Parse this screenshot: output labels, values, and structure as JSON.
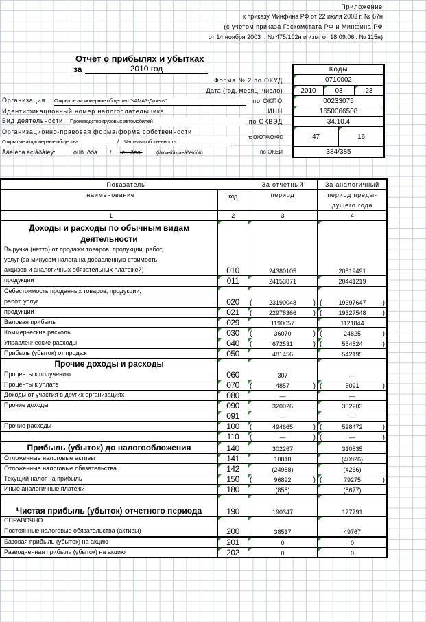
{
  "appendix": {
    "line1": "Приложение",
    "line2": "к приказу Минфина РФ от 22 июля 2003 г. № 67н",
    "line3": "(с учетом приказа Госкомстата РФ и Минфина РФ",
    "line4": "от 14 ноября 2003 г. № 475/102н и изм. от 18.09.06г. № 115н)"
  },
  "title": "Отчет о прибылях и убытках",
  "period_prefix": "за",
  "period": "2010 год",
  "codes": {
    "header": "Коды",
    "okud_label": "Форма № 2 по ОКУД",
    "okud": "0710002",
    "date_label": "Дата (год, месяц, число)",
    "year": "2010",
    "month": "03",
    "day": "23",
    "okpo_label": "по ОКПО",
    "okpo": "00233075",
    "inn_label": "ИНН",
    "inn": "1650066508",
    "okved_label": "по ОКВЭД",
    "okved": "34.10.4",
    "okopf_label": "по ОКОПФ/ОКФС",
    "okopf": "47",
    "okfs": "16",
    "okei_label": "по ОКЕИ",
    "okei": "384/385"
  },
  "org": {
    "org_label": "Организация",
    "org_value": "Открытое акционерное общество \"КАМАЗ-Дизель\"",
    "inn_label": "Идентификационный номер налогоплательщика",
    "activity_label": "Вид деятельности",
    "activity_value": "Производство грузовых автомобилей",
    "form_label": "Организационно-правовая форма/форма собственности",
    "form_value": "Открытые акционерные общества",
    "slash": "/",
    "ownership_value": "Частная собственность",
    "unit_label": "Åäèíèöà èçìåðåíèÿ:",
    "unit_a": "òûñ. ðóá.",
    "unit_slash": "/",
    "unit_b": "ìëí. ðóá.",
    "unit_note": "(íåíóæíîå çà÷åðêíóòü)"
  },
  "table": {
    "h_indicator": "Показатель",
    "h_name": "наименование",
    "h_code": "код",
    "h_cur_1": "За отчетный",
    "h_cur_2": "период",
    "h_prev_1": "За аналогичный",
    "h_prev_2": "период преды-",
    "h_prev_3": "дущего года",
    "n1": "1",
    "n2": "2",
    "n3": "3",
    "n4": "4",
    "rows": [
      {
        "heading": "Доходы и расходы по обычным видам деятельности",
        "lines": [
          "Выручка (нетто) от продажи товаров, продукции, работ,",
          "услуг (за минусом налога на добавленную стоимость,",
          "акцизов и аналогичных обязательных платежей)"
        ],
        "code": "010",
        "cur": "24380105",
        "prev": "20519491",
        "paren": false
      },
      {
        "lines": [
          "продукции"
        ],
        "code": "011",
        "cur": "24153871",
        "prev": "20441219",
        "paren": false
      },
      {
        "lines": [
          "Себестоимость проданных товаров, продукции,",
          "работ, услуг"
        ],
        "code": "020",
        "cur": "23190048",
        "prev": "19397647",
        "paren": true
      },
      {
        "lines": [
          "продукции"
        ],
        "code": "021",
        "cur": "22978366",
        "prev": "19327548",
        "paren": true
      },
      {
        "lines": [
          "Валовая прибыль"
        ],
        "code": "029",
        "cur": "1190057",
        "prev": "1121844",
        "paren": false
      },
      {
        "lines": [
          "Коммерческие расходы"
        ],
        "code": "030",
        "cur": "36070",
        "prev": "24825",
        "paren": true
      },
      {
        "lines": [
          "Управленческие расходы"
        ],
        "code": "040",
        "cur": "672531",
        "prev": "554824",
        "paren": true
      },
      {
        "lines": [
          "Прибыль (убыток) от продаж"
        ],
        "code": "050",
        "cur": "481456",
        "prev": "542195",
        "paren": false
      },
      {
        "heading": "Прочие доходы и расходы",
        "lines": [
          "Проценты к получению"
        ],
        "code": "060",
        "cur": "307",
        "prev": "—",
        "paren": false
      },
      {
        "lines": [
          "Проценты к уплате"
        ],
        "code": "070",
        "cur": "4857",
        "prev": "5091",
        "paren": true
      },
      {
        "lines": [
          "Доходы от участия в других организациях"
        ],
        "code": "080",
        "cur": "—",
        "prev": "—",
        "paren": false
      },
      {
        "lines": [
          "Прочие доходы"
        ],
        "code": "090",
        "cur": "320026",
        "prev": "302203",
        "paren": false
      },
      {
        "lines": [
          ""
        ],
        "code": "091",
        "cur": "—",
        "prev": "—",
        "paren": false
      },
      {
        "lines": [
          "Прочие расходы"
        ],
        "code": "100",
        "cur": "494665",
        "prev": "528472",
        "paren": true
      },
      {
        "lines": [
          ""
        ],
        "code": "110",
        "cur": "—",
        "prev": "—",
        "paren": true
      },
      {
        "heading": "Прибыль (убыток) до налогообложения",
        "lines": [],
        "code": "140",
        "cur": "302267",
        "prev": "310835",
        "paren": false
      },
      {
        "lines": [
          "Отложенные налоговые активы"
        ],
        "code": "141",
        "cur": "10818",
        "prev": "(40826)",
        "paren": false
      },
      {
        "lines": [
          "Отложенные налоговые обязательства"
        ],
        "code": "142",
        "cur": "(24988)",
        "prev": "(4266)",
        "paren": false
      },
      {
        "lines": [
          "Текущий налог на прибыль"
        ],
        "code": "150",
        "cur": "96892",
        "prev": "79275",
        "paren": true
      },
      {
        "lines": [
          "Иные аналогичные платежи"
        ],
        "code": "180",
        "cur": "(858)",
        "prev": "(8677)",
        "paren": false
      },
      {
        "heading": "Чистая прибыль (убыток) отчетного периода",
        "lines": [],
        "code": "190",
        "cur": "190347",
        "prev": "177791",
        "paren": false
      },
      {
        "lines": [
          "СПРАВОЧНО.",
          "Постоянные налоговые обязательства (активы)"
        ],
        "code": "200",
        "cur": "38517",
        "prev": "49767",
        "paren": false
      },
      {
        "lines": [
          "Базовая прибыль (убыток) на акцию"
        ],
        "code": "201",
        "cur": "0",
        "prev": "0",
        "paren": false
      },
      {
        "lines": [
          "Разводненная прибыль (убыток) на акцию"
        ],
        "code": "202",
        "cur": "0",
        "prev": "0",
        "paren": false
      }
    ]
  },
  "colors": {
    "grid": "#c9cfdc",
    "marker": "#2e8b2e"
  }
}
